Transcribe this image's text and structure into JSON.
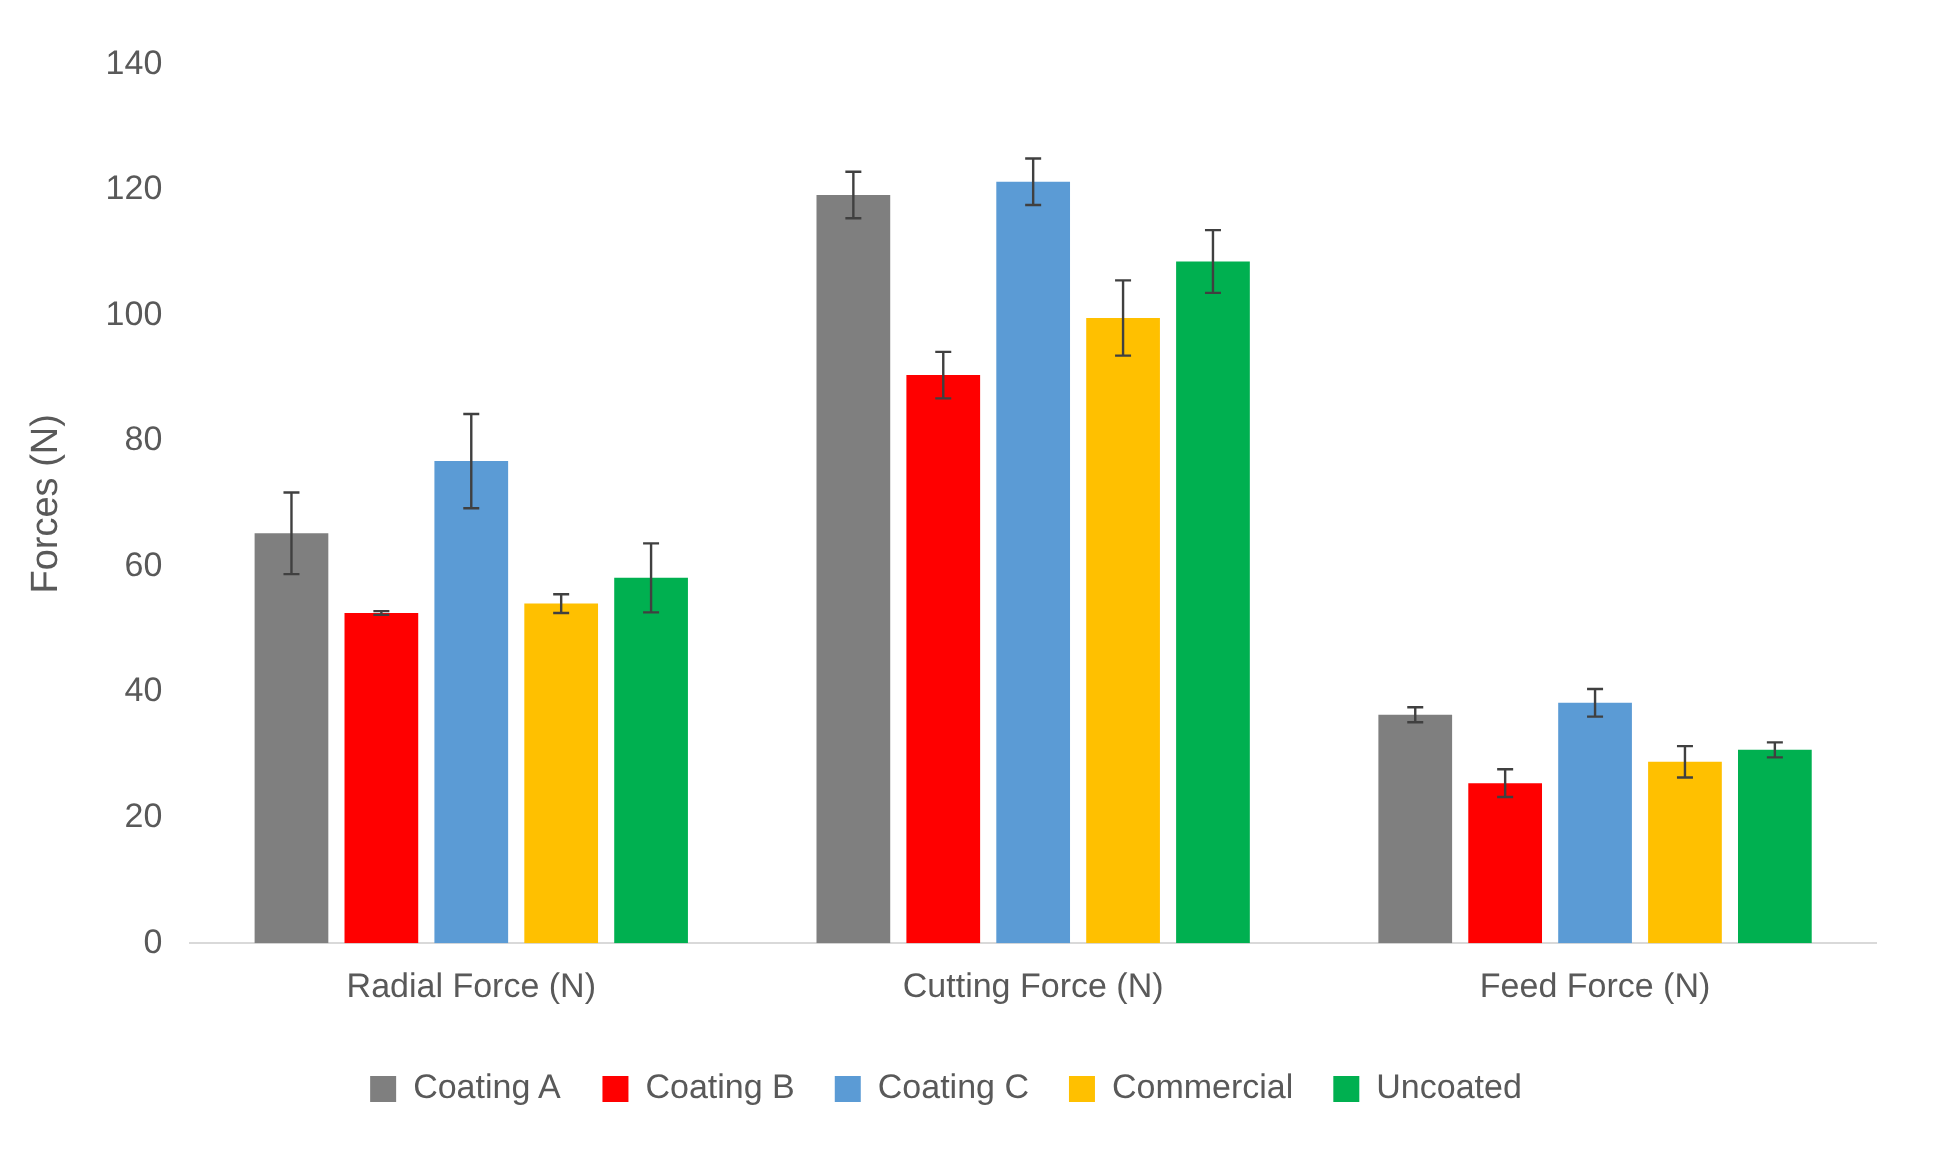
{
  "chart_data": {
    "type": "bar",
    "ylabel": "Forces (N)",
    "categories": [
      "Radial Force (N)",
      "Cutting Force (N)",
      "Feed Force (N)"
    ],
    "series": [
      {
        "name": "Coating A",
        "color": "#7f7f7f",
        "values": [
          65.3,
          119.2,
          36.4
        ],
        "errors": [
          6.5,
          3.7,
          1.2
        ]
      },
      {
        "name": "Coating B",
        "color": "#ff0000",
        "values": [
          52.6,
          90.5,
          25.5
        ],
        "errors": [
          0.3,
          3.7,
          2.2
        ]
      },
      {
        "name": "Coating C",
        "color": "#5b9bd5",
        "values": [
          76.8,
          121.3,
          38.3
        ],
        "errors": [
          7.5,
          3.7,
          2.2
        ]
      },
      {
        "name": "Commercial",
        "color": "#ffc000",
        "values": [
          54.1,
          99.6,
          28.9
        ],
        "errors": [
          1.5,
          6,
          2.5
        ]
      },
      {
        "name": "Uncoated",
        "color": "#00b050",
        "values": [
          58.2,
          108.6,
          30.8
        ],
        "errors": [
          5.5,
          5,
          1.2
        ]
      }
    ],
    "ylim": [
      0,
      140
    ],
    "yticks": [
      0,
      20,
      40,
      60,
      80,
      100,
      120,
      140
    ],
    "grid": false,
    "legend": "bottom"
  }
}
